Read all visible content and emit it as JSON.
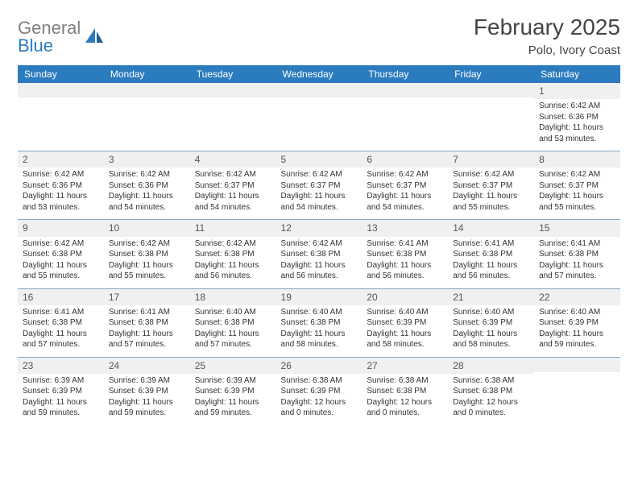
{
  "brand": {
    "part1": "General",
    "part2": "Blue"
  },
  "title": "February 2025",
  "location": "Polo, Ivory Coast",
  "colors": {
    "header_bg": "#2b7bbf",
    "header_text": "#ffffff",
    "num_row_bg": "#eef0f1",
    "border": "#8aa8bf",
    "brand_gray": "#808080",
    "brand_blue": "#2b7bbf"
  },
  "weekday_labels": [
    "Sunday",
    "Monday",
    "Tuesday",
    "Wednesday",
    "Thursday",
    "Friday",
    "Saturday"
  ],
  "weeks": [
    [
      {
        "n": "",
        "lines": [
          "",
          "",
          "",
          ""
        ]
      },
      {
        "n": "",
        "lines": [
          "",
          "",
          "",
          ""
        ]
      },
      {
        "n": "",
        "lines": [
          "",
          "",
          "",
          ""
        ]
      },
      {
        "n": "",
        "lines": [
          "",
          "",
          "",
          ""
        ]
      },
      {
        "n": "",
        "lines": [
          "",
          "",
          "",
          ""
        ]
      },
      {
        "n": "",
        "lines": [
          "",
          "",
          "",
          ""
        ]
      },
      {
        "n": "1",
        "lines": [
          "Sunrise: 6:42 AM",
          "Sunset: 6:36 PM",
          "Daylight: 11 hours",
          "and 53 minutes."
        ]
      }
    ],
    [
      {
        "n": "2",
        "lines": [
          "Sunrise: 6:42 AM",
          "Sunset: 6:36 PM",
          "Daylight: 11 hours",
          "and 53 minutes."
        ]
      },
      {
        "n": "3",
        "lines": [
          "Sunrise: 6:42 AM",
          "Sunset: 6:36 PM",
          "Daylight: 11 hours",
          "and 54 minutes."
        ]
      },
      {
        "n": "4",
        "lines": [
          "Sunrise: 6:42 AM",
          "Sunset: 6:37 PM",
          "Daylight: 11 hours",
          "and 54 minutes."
        ]
      },
      {
        "n": "5",
        "lines": [
          "Sunrise: 6:42 AM",
          "Sunset: 6:37 PM",
          "Daylight: 11 hours",
          "and 54 minutes."
        ]
      },
      {
        "n": "6",
        "lines": [
          "Sunrise: 6:42 AM",
          "Sunset: 6:37 PM",
          "Daylight: 11 hours",
          "and 54 minutes."
        ]
      },
      {
        "n": "7",
        "lines": [
          "Sunrise: 6:42 AM",
          "Sunset: 6:37 PM",
          "Daylight: 11 hours",
          "and 55 minutes."
        ]
      },
      {
        "n": "8",
        "lines": [
          "Sunrise: 6:42 AM",
          "Sunset: 6:37 PM",
          "Daylight: 11 hours",
          "and 55 minutes."
        ]
      }
    ],
    [
      {
        "n": "9",
        "lines": [
          "Sunrise: 6:42 AM",
          "Sunset: 6:38 PM",
          "Daylight: 11 hours",
          "and 55 minutes."
        ]
      },
      {
        "n": "10",
        "lines": [
          "Sunrise: 6:42 AM",
          "Sunset: 6:38 PM",
          "Daylight: 11 hours",
          "and 55 minutes."
        ]
      },
      {
        "n": "11",
        "lines": [
          "Sunrise: 6:42 AM",
          "Sunset: 6:38 PM",
          "Daylight: 11 hours",
          "and 56 minutes."
        ]
      },
      {
        "n": "12",
        "lines": [
          "Sunrise: 6:42 AM",
          "Sunset: 6:38 PM",
          "Daylight: 11 hours",
          "and 56 minutes."
        ]
      },
      {
        "n": "13",
        "lines": [
          "Sunrise: 6:41 AM",
          "Sunset: 6:38 PM",
          "Daylight: 11 hours",
          "and 56 minutes."
        ]
      },
      {
        "n": "14",
        "lines": [
          "Sunrise: 6:41 AM",
          "Sunset: 6:38 PM",
          "Daylight: 11 hours",
          "and 56 minutes."
        ]
      },
      {
        "n": "15",
        "lines": [
          "Sunrise: 6:41 AM",
          "Sunset: 6:38 PM",
          "Daylight: 11 hours",
          "and 57 minutes."
        ]
      }
    ],
    [
      {
        "n": "16",
        "lines": [
          "Sunrise: 6:41 AM",
          "Sunset: 6:38 PM",
          "Daylight: 11 hours",
          "and 57 minutes."
        ]
      },
      {
        "n": "17",
        "lines": [
          "Sunrise: 6:41 AM",
          "Sunset: 6:38 PM",
          "Daylight: 11 hours",
          "and 57 minutes."
        ]
      },
      {
        "n": "18",
        "lines": [
          "Sunrise: 6:40 AM",
          "Sunset: 6:38 PM",
          "Daylight: 11 hours",
          "and 57 minutes."
        ]
      },
      {
        "n": "19",
        "lines": [
          "Sunrise: 6:40 AM",
          "Sunset: 6:38 PM",
          "Daylight: 11 hours",
          "and 58 minutes."
        ]
      },
      {
        "n": "20",
        "lines": [
          "Sunrise: 6:40 AM",
          "Sunset: 6:39 PM",
          "Daylight: 11 hours",
          "and 58 minutes."
        ]
      },
      {
        "n": "21",
        "lines": [
          "Sunrise: 6:40 AM",
          "Sunset: 6:39 PM",
          "Daylight: 11 hours",
          "and 58 minutes."
        ]
      },
      {
        "n": "22",
        "lines": [
          "Sunrise: 6:40 AM",
          "Sunset: 6:39 PM",
          "Daylight: 11 hours",
          "and 59 minutes."
        ]
      }
    ],
    [
      {
        "n": "23",
        "lines": [
          "Sunrise: 6:39 AM",
          "Sunset: 6:39 PM",
          "Daylight: 11 hours",
          "and 59 minutes."
        ]
      },
      {
        "n": "24",
        "lines": [
          "Sunrise: 6:39 AM",
          "Sunset: 6:39 PM",
          "Daylight: 11 hours",
          "and 59 minutes."
        ]
      },
      {
        "n": "25",
        "lines": [
          "Sunrise: 6:39 AM",
          "Sunset: 6:39 PM",
          "Daylight: 11 hours",
          "and 59 minutes."
        ]
      },
      {
        "n": "26",
        "lines": [
          "Sunrise: 6:38 AM",
          "Sunset: 6:39 PM",
          "Daylight: 12 hours",
          "and 0 minutes."
        ]
      },
      {
        "n": "27",
        "lines": [
          "Sunrise: 6:38 AM",
          "Sunset: 6:38 PM",
          "Daylight: 12 hours",
          "and 0 minutes."
        ]
      },
      {
        "n": "28",
        "lines": [
          "Sunrise: 6:38 AM",
          "Sunset: 6:38 PM",
          "Daylight: 12 hours",
          "and 0 minutes."
        ]
      },
      {
        "n": "",
        "lines": [
          "",
          "",
          "",
          ""
        ]
      }
    ]
  ]
}
